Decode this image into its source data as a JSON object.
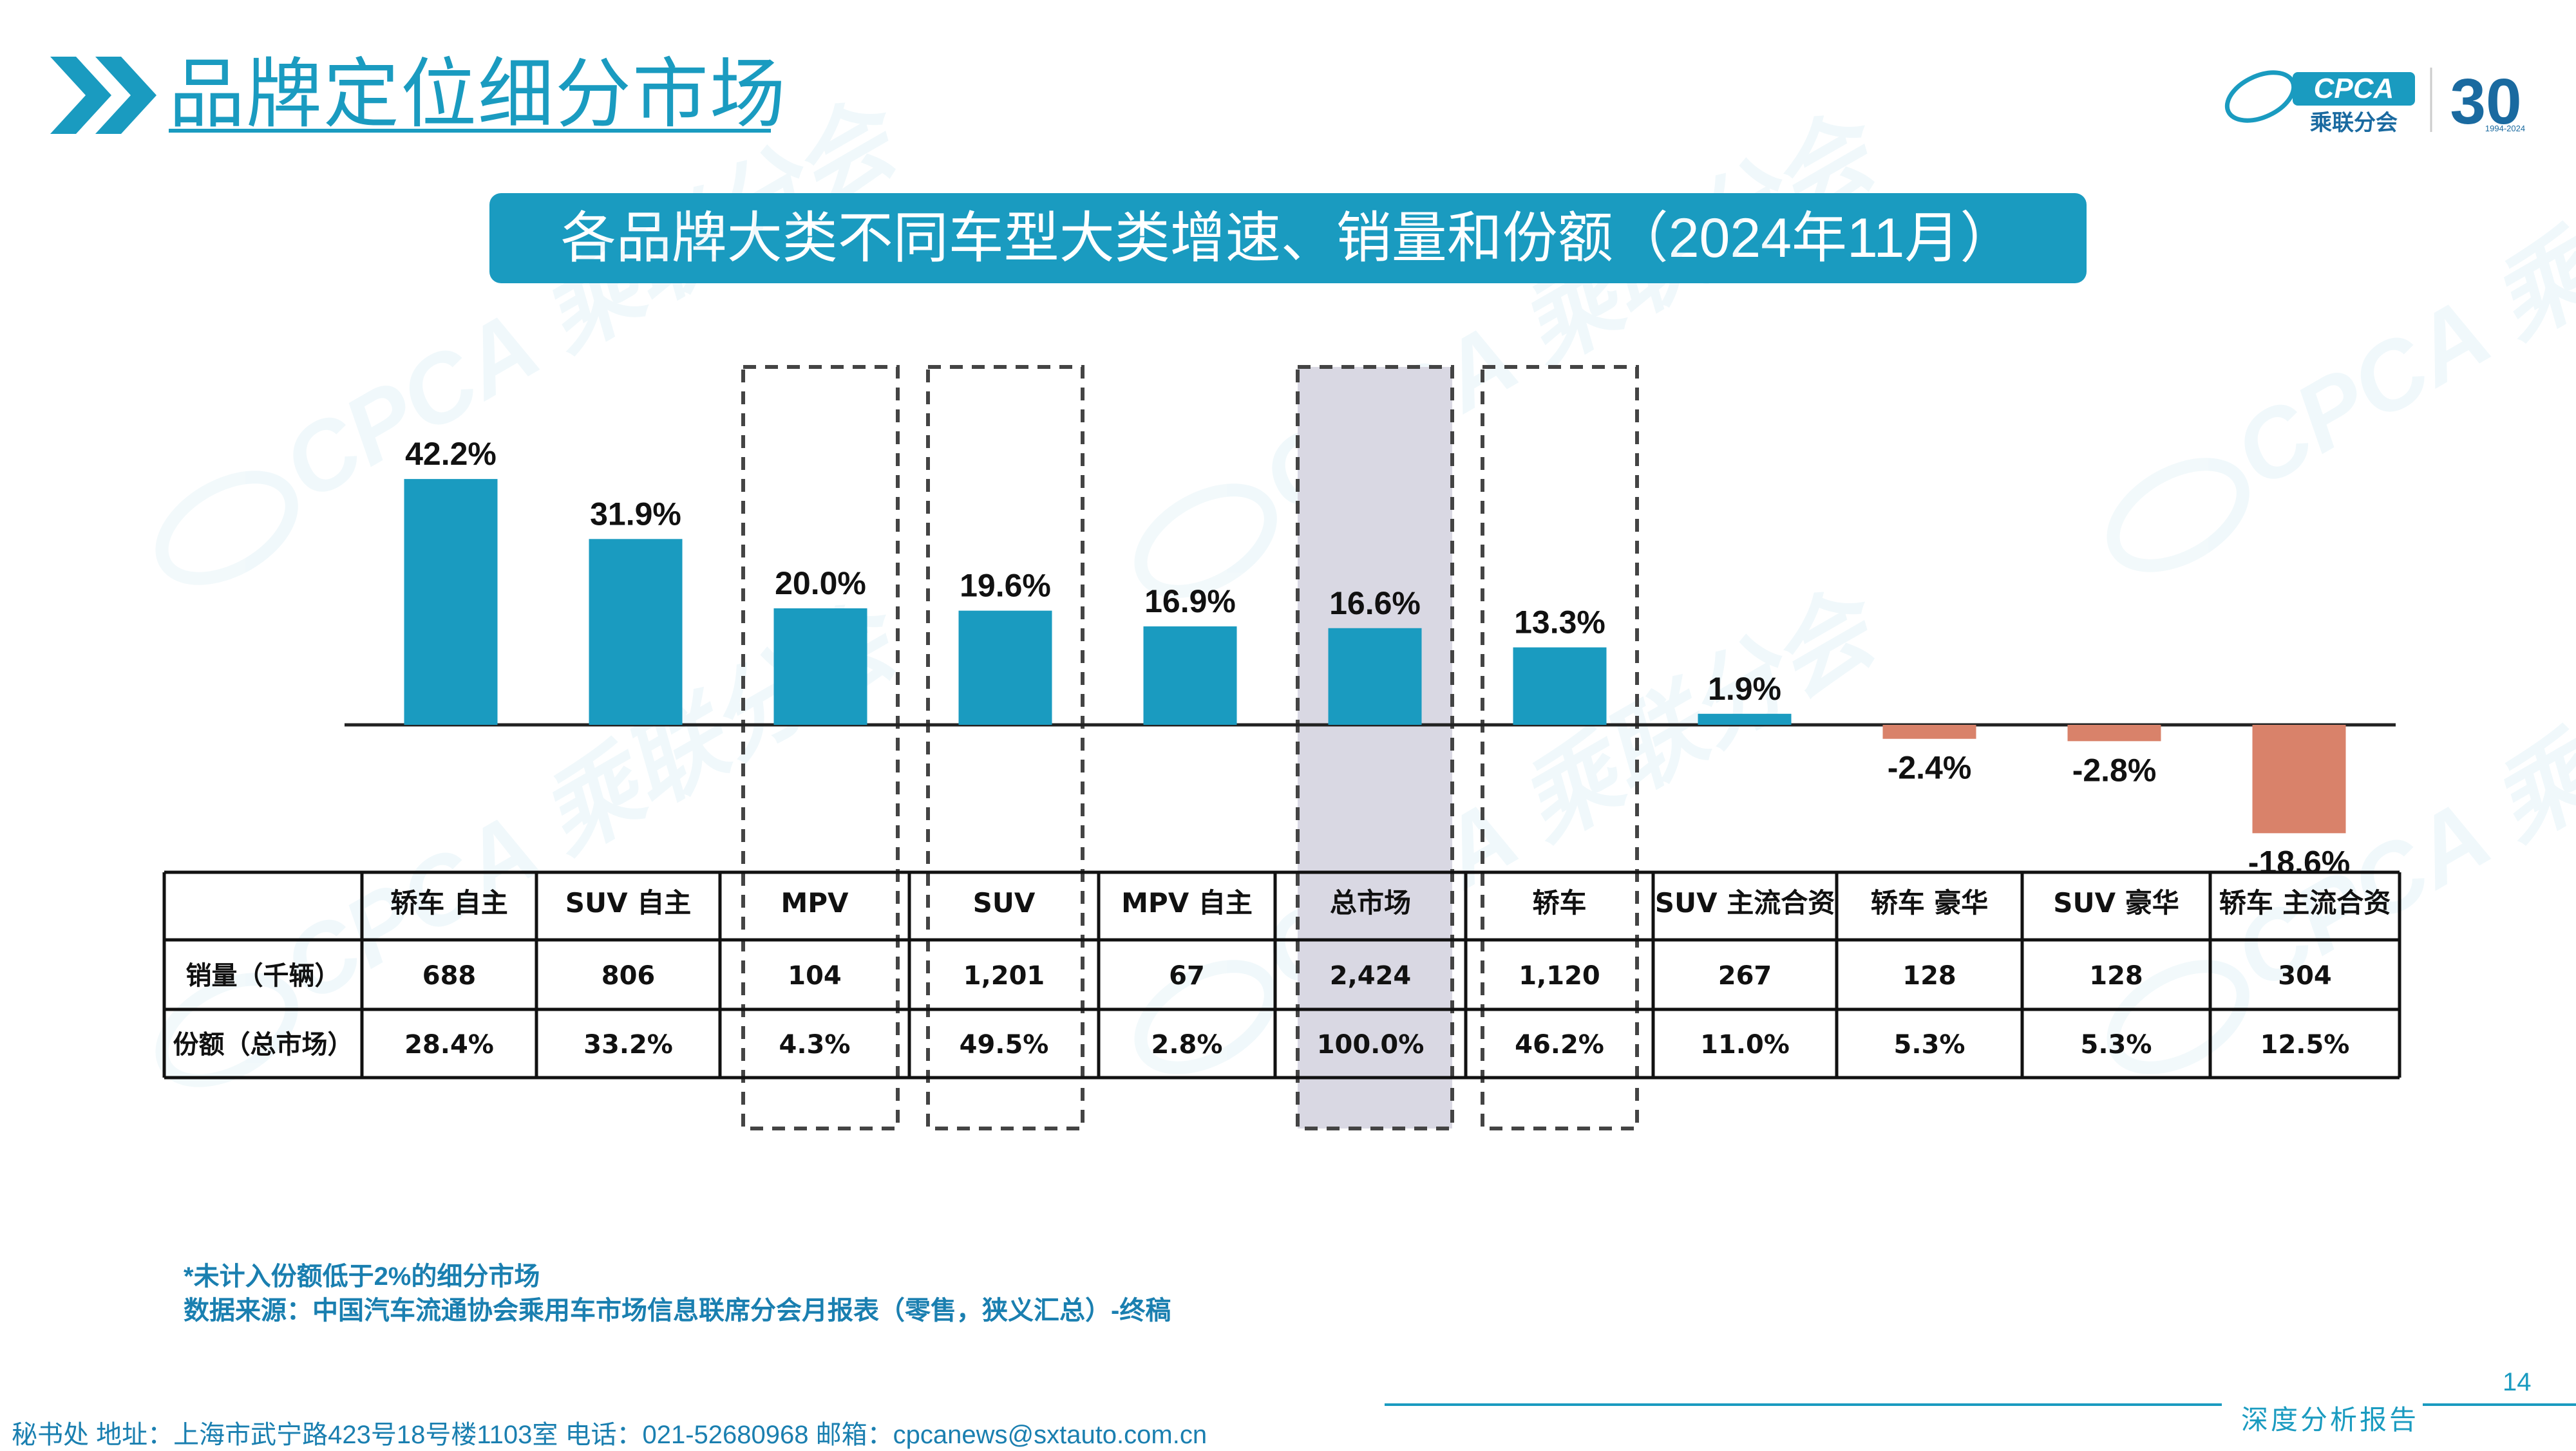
{
  "header": {
    "title": "品牌定位细分市场"
  },
  "subtitle": "各品牌大类不同车型大类增速、销量和份额（2024年11月）",
  "logo": {
    "brand": "CPCA",
    "brand_cn": "乘联分会",
    "anniversary": "30",
    "years": "1994-2024"
  },
  "colors": {
    "accent": "#1a9bc0",
    "positive_bar": "#1a9bc0",
    "negative_bar": "#d9826a",
    "highlight_fill": "#d9d8e3"
  },
  "chart_data": {
    "type": "bar",
    "categories": [
      "轿车 自主",
      "SUV 自主",
      "MPV",
      "SUV",
      "MPV 自主",
      "总市场",
      "轿车",
      "SUV 主流合资",
      "轿车 豪华",
      "SUV 豪华",
      "轿车 主流合资"
    ],
    "values": [
      42.2,
      31.9,
      20.0,
      19.6,
      16.9,
      16.6,
      13.3,
      1.9,
      -2.4,
      -2.8,
      -18.6
    ],
    "value_labels": [
      "42.2%",
      "31.9%",
      "20.0%",
      "19.6%",
      "16.9%",
      "16.6%",
      "13.3%",
      "1.9%",
      "-2.4%",
      "-2.8%",
      "-18.6%"
    ],
    "highlighted": [
      "MPV",
      "SUV",
      "总市场",
      "轿车"
    ],
    "filled_highlight": "总市场"
  },
  "table": {
    "header_empty": "",
    "rows": [
      {
        "label": "销量（千辆）",
        "values": [
          "688",
          "806",
          "104",
          "1,201",
          "67",
          "2,424",
          "1,120",
          "267",
          "128",
          "128",
          "304"
        ]
      },
      {
        "label": "份额（总市场）",
        "values": [
          "28.4%",
          "33.2%",
          "4.3%",
          "49.5%",
          "2.8%",
          "100.0%",
          "46.2%",
          "11.0%",
          "5.3%",
          "5.3%",
          "12.5%"
        ]
      }
    ]
  },
  "footnotes": [
    "*未计入份额低于2%的细分市场",
    "数据来源：中国汽车流通协会乘用车市场信息联席分会月报表（零售，狭义汇总）-终稿"
  ],
  "page_number": "14",
  "footer": {
    "address": "秘书处   地址：上海市武宁路423号18号楼1103室   电话：021-52680968   邮箱：cpcanews@sxtauto.com.cn",
    "report_label": "深度分析报告"
  },
  "watermark": "CPCA 乘联分会"
}
